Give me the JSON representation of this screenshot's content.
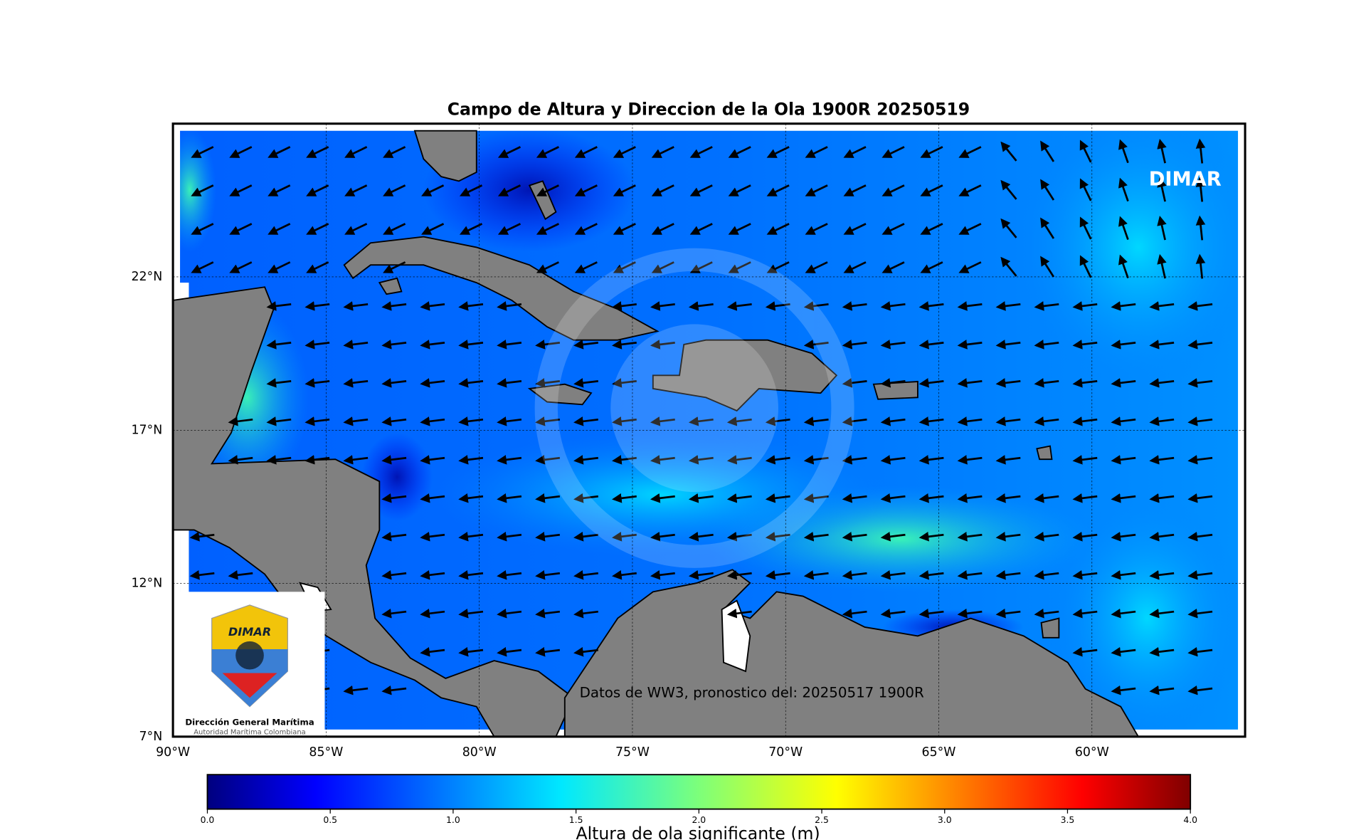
{
  "map": {
    "title": "Campo de Altura y Direccion de la Ola 1900R 20250519",
    "brand": "DIMAR",
    "source_note": "Datos de WW3, pronostico del: 20250517 1900R",
    "xlim": [
      -90,
      -55
    ],
    "ylim": [
      7,
      27
    ],
    "lat_ticks": [
      {
        "value": 7,
        "label": "7°N"
      },
      {
        "value": 12,
        "label": "12°N"
      },
      {
        "value": 17,
        "label": "17°N"
      },
      {
        "value": 22,
        "label": "22°N"
      }
    ],
    "lon_ticks": [
      {
        "value": -90,
        "label": "90°W"
      },
      {
        "value": -85,
        "label": "85°W"
      },
      {
        "value": -80,
        "label": "80°W"
      },
      {
        "value": -75,
        "label": "75°W"
      },
      {
        "value": -70,
        "label": "70°W"
      },
      {
        "value": -65,
        "label": "65°W"
      },
      {
        "value": -60,
        "label": "60°W"
      }
    ],
    "logo": {
      "mark": "DIMAR",
      "name": "Dirección General Marítima",
      "subtitle": "Autoridad Marítima Colombiana"
    },
    "colorbar": {
      "label": "Altura de ola significante (m)",
      "lim": [
        0,
        4
      ],
      "ticks": [
        {
          "value": 0,
          "label": "0.0"
        },
        {
          "value": 0.5,
          "label": "0.5"
        },
        {
          "value": 1,
          "label": "1.0"
        },
        {
          "value": 1.5,
          "label": "1.5"
        },
        {
          "value": 2,
          "label": "2.0"
        },
        {
          "value": 2.5,
          "label": "2.5"
        },
        {
          "value": 3,
          "label": "3.0"
        },
        {
          "value": 3.5,
          "label": "3.5"
        },
        {
          "value": 4,
          "label": "4.0"
        }
      ]
    }
  }
}
